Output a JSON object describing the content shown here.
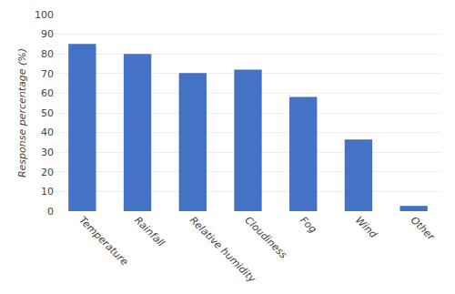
{
  "chart_data": {
    "type": "bar",
    "categories": [
      "Temperature",
      "Rainfall",
      "Relative humidity",
      "Cloudiness",
      "Fog",
      "Wind",
      "Other"
    ],
    "values": [
      85.1,
      80.0,
      70.3,
      72.0,
      58.1,
      36.5,
      2.7
    ],
    "color": "#4472c4",
    "ylabel": "Response percentage (%)",
    "ylim": [
      0,
      100
    ],
    "yticks": [
      0,
      10,
      20,
      30,
      40,
      50,
      60,
      70,
      80,
      90,
      100
    ],
    "grid": true
  }
}
